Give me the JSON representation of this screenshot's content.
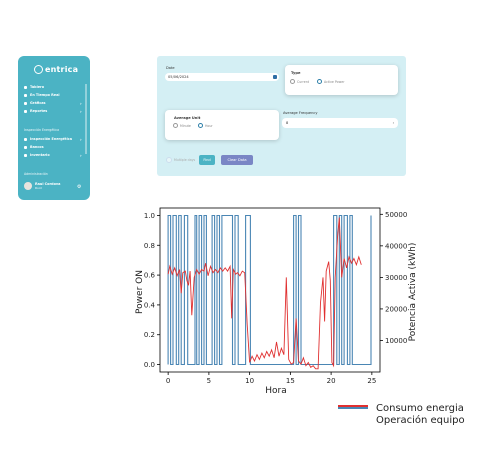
{
  "sidebar": {
    "logo_text": "entrica",
    "items": [
      {
        "label": "Tablero",
        "icon": "home-icon"
      },
      {
        "label": "En Tiempo Real",
        "icon": "lightning-icon"
      },
      {
        "label": "Gráficas",
        "icon": "chart-icon"
      },
      {
        "label": "Reportes",
        "icon": "document-icon"
      }
    ],
    "section_energy": "Inspección Energética",
    "energy_items": [
      {
        "label": "Inspección Energética",
        "icon": "inspect-icon"
      },
      {
        "label": "Bancos",
        "icon": "bank-icon"
      },
      {
        "label": "Inventario",
        "icon": "inventory-icon"
      }
    ],
    "section_admin": "Administración",
    "user": {
      "name": "Raul Cordova",
      "role": "Root"
    }
  },
  "filters": {
    "date_label": "Date",
    "date_value": "05/06/2024",
    "type_label": "Type",
    "type_options": [
      {
        "label": "Current",
        "selected": false
      },
      {
        "label": "Active Power",
        "selected": true
      }
    ],
    "avg_unit_label": "Average Unit",
    "avg_unit_options": [
      {
        "label": "Minute",
        "selected": false
      },
      {
        "label": "Hour",
        "selected": true
      }
    ],
    "avg_freq_label": "Average Frequency",
    "avg_freq_value": "8",
    "multiple_days_label": "Multiple days",
    "find_button": "Find",
    "clear_button": "Clear Data"
  },
  "chart_data": {
    "type": "line",
    "xlabel": "Hora",
    "ylabel_left": "Power ON",
    "ylabel_right": "Potencia Activa (kWh)",
    "xlim": [
      -1,
      26
    ],
    "ylim_left": [
      -0.05,
      1.05
    ],
    "ylim_right": [
      0,
      52000
    ],
    "x_ticks": [
      0,
      5,
      10,
      15,
      20,
      25
    ],
    "y_ticks_left": [
      "0.0",
      "0.2",
      "0.4",
      "0.6",
      "0.8",
      "1.0"
    ],
    "y_ticks_right": [
      "10000",
      "20000",
      "30000",
      "40000",
      "50000"
    ],
    "series": [
      {
        "name": "Operación equipo",
        "color": "#4a86b4",
        "axis": "left",
        "points": [
          [
            0,
            0
          ],
          [
            0,
            1
          ],
          [
            0.3,
            1
          ],
          [
            0.3,
            0
          ],
          [
            0.6,
            0
          ],
          [
            0.6,
            1
          ],
          [
            1.0,
            1
          ],
          [
            1.0,
            0
          ],
          [
            1.3,
            0
          ],
          [
            1.3,
            1
          ],
          [
            1.6,
            1
          ],
          [
            1.6,
            0
          ],
          [
            2.0,
            0
          ],
          [
            2.0,
            1
          ],
          [
            2.4,
            1
          ],
          [
            2.4,
            0
          ],
          [
            3.3,
            0
          ],
          [
            3.3,
            1
          ],
          [
            3.5,
            1
          ],
          [
            3.5,
            0
          ],
          [
            3.8,
            0
          ],
          [
            3.8,
            1
          ],
          [
            4.1,
            1
          ],
          [
            4.1,
            0
          ],
          [
            4.4,
            0
          ],
          [
            4.4,
            1
          ],
          [
            4.7,
            1
          ],
          [
            4.7,
            0
          ],
          [
            5.4,
            0
          ],
          [
            5.4,
            1
          ],
          [
            5.7,
            1
          ],
          [
            5.7,
            0
          ],
          [
            6.0,
            0
          ],
          [
            6.0,
            1
          ],
          [
            6.3,
            1
          ],
          [
            6.3,
            0
          ],
          [
            6.6,
            0
          ],
          [
            6.6,
            1
          ],
          [
            7.9,
            1
          ],
          [
            7.9,
            0
          ],
          [
            8.2,
            0
          ],
          [
            8.2,
            1
          ],
          [
            8.6,
            1
          ],
          [
            8.6,
            0
          ],
          [
            9.5,
            0
          ],
          [
            9.5,
            1
          ],
          [
            10.1,
            1
          ],
          [
            10.1,
            0
          ],
          [
            15.4,
            0
          ],
          [
            15.4,
            1
          ],
          [
            15.7,
            1
          ],
          [
            15.7,
            0
          ],
          [
            16.0,
            0
          ],
          [
            16.0,
            1
          ],
          [
            16.3,
            1
          ],
          [
            16.3,
            0
          ],
          [
            20.3,
            0
          ],
          [
            20.3,
            1
          ],
          [
            20.7,
            1
          ],
          [
            20.7,
            0
          ],
          [
            21.0,
            0
          ],
          [
            21.0,
            1
          ],
          [
            21.3,
            1
          ],
          [
            21.3,
            0
          ],
          [
            21.6,
            0
          ],
          [
            21.6,
            1
          ],
          [
            22.0,
            1
          ],
          [
            22.0,
            0
          ],
          [
            22.3,
            0
          ],
          [
            22.3,
            1
          ],
          [
            22.6,
            1
          ],
          [
            22.6,
            0
          ],
          [
            24.9,
            0
          ],
          [
            24.9,
            1
          ]
        ]
      },
      {
        "name": "Consumo energia",
        "color": "#e03030",
        "axis": "right",
        "points": [
          [
            0,
            31000
          ],
          [
            0.2,
            33500
          ],
          [
            0.5,
            31000
          ],
          [
            0.8,
            33000
          ],
          [
            1.1,
            30500
          ],
          [
            1.4,
            32500
          ],
          [
            1.6,
            25000
          ],
          [
            1.8,
            31500
          ],
          [
            2.1,
            32000
          ],
          [
            2.3,
            29000
          ],
          [
            2.5,
            27500
          ],
          [
            2.7,
            32000
          ],
          [
            2.9,
            18000
          ],
          [
            3.2,
            30000
          ],
          [
            3.5,
            32500
          ],
          [
            3.8,
            31000
          ],
          [
            4.1,
            32500
          ],
          [
            4.4,
            32000
          ],
          [
            4.6,
            34500
          ],
          [
            4.9,
            30500
          ],
          [
            5.2,
            33500
          ],
          [
            5.5,
            31500
          ],
          [
            5.8,
            32500
          ],
          [
            6.1,
            31500
          ],
          [
            6.4,
            33000
          ],
          [
            6.7,
            32000
          ],
          [
            7.0,
            33000
          ],
          [
            7.3,
            32000
          ],
          [
            7.6,
            33500
          ],
          [
            7.8,
            17000
          ],
          [
            8.0,
            32500
          ],
          [
            8.3,
            31000
          ],
          [
            8.5,
            31500
          ],
          [
            8.8,
            30500
          ],
          [
            9.1,
            32000
          ],
          [
            9.4,
            31500
          ],
          [
            9.7,
            15000
          ],
          [
            10.0,
            3000
          ],
          [
            10.3,
            5000
          ],
          [
            10.6,
            3500
          ],
          [
            10.9,
            5500
          ],
          [
            11.2,
            4000
          ],
          [
            11.5,
            6000
          ],
          [
            11.8,
            4500
          ],
          [
            12.1,
            6500
          ],
          [
            12.4,
            5000
          ],
          [
            12.7,
            7000
          ],
          [
            13.0,
            4500
          ],
          [
            13.3,
            9500
          ],
          [
            13.6,
            5000
          ],
          [
            13.9,
            7500
          ],
          [
            14.2,
            5500
          ],
          [
            14.5,
            30000
          ],
          [
            14.8,
            4000
          ],
          [
            15.1,
            2500
          ],
          [
            15.4,
            3000
          ],
          [
            15.7,
            17000
          ],
          [
            16.0,
            3500
          ],
          [
            16.3,
            2500
          ],
          [
            16.6,
            4500
          ],
          [
            16.9,
            2000
          ],
          [
            17.2,
            3000
          ],
          [
            17.5,
            1500
          ],
          [
            17.8,
            2000
          ],
          [
            18.1,
            1000
          ],
          [
            18.4,
            1000
          ],
          [
            18.7,
            22000
          ],
          [
            19.0,
            30000
          ],
          [
            19.2,
            16000
          ],
          [
            19.4,
            32000
          ],
          [
            19.7,
            35000
          ],
          [
            19.9,
            29000
          ],
          [
            20.1,
            3000
          ],
          [
            20.3,
            2000
          ],
          [
            20.5,
            30000
          ],
          [
            20.8,
            43000
          ],
          [
            21.0,
            49000
          ],
          [
            21.3,
            30000
          ],
          [
            21.6,
            36000
          ],
          [
            21.9,
            33000
          ],
          [
            22.2,
            36500
          ],
          [
            22.5,
            34500
          ],
          [
            22.8,
            36000
          ],
          [
            23.1,
            34000
          ],
          [
            23.4,
            36500
          ],
          [
            23.7,
            34000
          ]
        ]
      }
    ]
  },
  "legend": {
    "entries": [
      {
        "label": "Consumo energia",
        "color": "#e03030"
      },
      {
        "label": "Operación equipo",
        "color": "#4a86b4"
      }
    ]
  }
}
